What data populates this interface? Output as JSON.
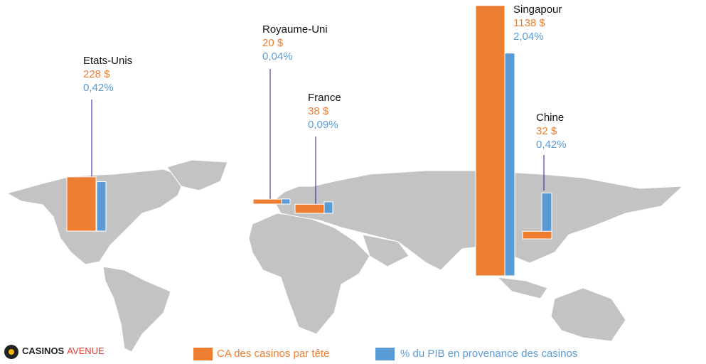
{
  "chart_data": {
    "type": "bar",
    "categories": [
      "Etats-Unis",
      "Royaume-Uni",
      "France",
      "Singapour",
      "Chine"
    ],
    "series": [
      {
        "name": "CA des casinos par tête",
        "color": "#ed7d31",
        "values": [
          228,
          20,
          38,
          1138,
          32
        ],
        "value_labels": [
          "228 $",
          "20 $",
          "38 $",
          "1138 $",
          "32 $"
        ]
      },
      {
        "name": "% du PIB en provenance des casinos",
        "color": "#5b9bd5",
        "values": [
          0.42,
          0.04,
          0.09,
          2.04,
          0.42
        ],
        "value_labels": [
          "0,42%",
          "0,04%",
          "0,09%",
          "2,04%",
          "0,42%"
        ]
      }
    ]
  },
  "brand": {
    "name": "CASINOS",
    "accent": "AVENUE"
  }
}
